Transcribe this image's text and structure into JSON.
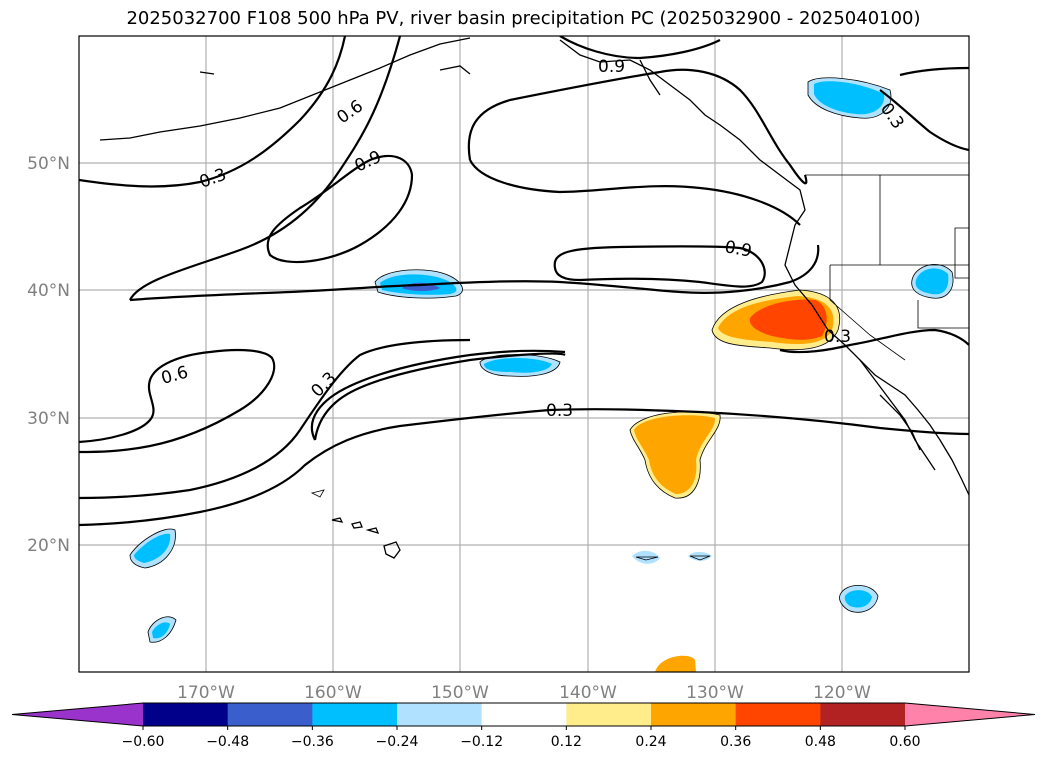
{
  "title": "2025032700 F108 500 hPa PV, river basin precipitation PC (2025032900 - 2025040100)",
  "lon_labels": [
    "170°W",
    "160°W",
    "150°W",
    "140°W",
    "130°W",
    "120°W"
  ],
  "lat_labels": [
    "50°N",
    "40°N",
    "30°N",
    "20°N"
  ],
  "contour_labels": [
    "0.9",
    "0.6",
    "0.3",
    "0.9",
    "0.3",
    "0.9",
    "0.3",
    "0.6",
    "0.3",
    "0.3"
  ],
  "colorbar": {
    "ticks": [
      "−0.60",
      "−0.48",
      "−0.36",
      "−0.24",
      "−0.12",
      "0.12",
      "0.24",
      "0.36",
      "0.48",
      "0.60"
    ],
    "colors": [
      "#9933cc",
      "#00008b",
      "#3a5fcd",
      "#00bfff",
      "#b0e2ff",
      "#ffffff",
      "#ffec8b",
      "#ffa500",
      "#ff4500",
      "#b22222",
      "#ff82ab"
    ]
  }
}
